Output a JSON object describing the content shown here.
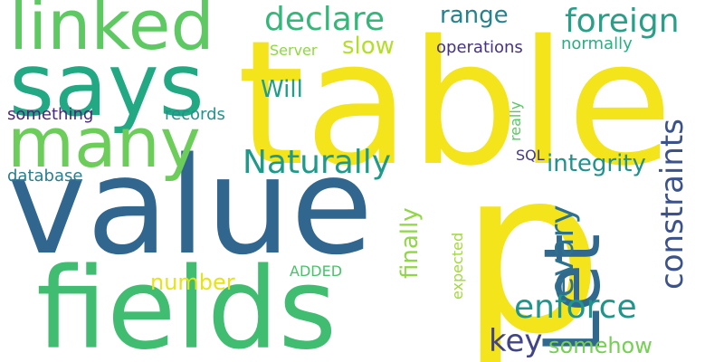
{
  "words": [
    {
      "text": "table",
      "color": "#f3e41b"
    },
    {
      "text": "p",
      "color": "#f3e41b"
    },
    {
      "text": "value",
      "color": "#31668e"
    },
    {
      "text": "fields",
      "color": "#41bd72"
    },
    {
      "text": "says",
      "color": "#23a884"
    },
    {
      "text": "linked",
      "color": "#5ec962"
    },
    {
      "text": "many",
      "color": "#6ccd5a"
    },
    {
      "text": "Let",
      "color": "#31688e"
    },
    {
      "text": "declare",
      "color": "#35b779"
    },
    {
      "text": "foreign",
      "color": "#2a9f87"
    },
    {
      "text": "Naturally",
      "color": "#1f9a8a"
    },
    {
      "text": "constraints",
      "color": "#3b528b"
    },
    {
      "text": "enforce",
      "color": "#1f958b"
    },
    {
      "text": "evary",
      "color": "#2d718e"
    },
    {
      "text": "integrity",
      "color": "#21918c"
    },
    {
      "text": "range",
      "color": "#26828e"
    },
    {
      "text": "slow",
      "color": "#b5de2b"
    },
    {
      "text": "Will",
      "color": "#1f9e89"
    },
    {
      "text": "finally",
      "color": "#8fd744"
    },
    {
      "text": "key",
      "color": "#414487"
    },
    {
      "text": "somehow",
      "color": "#75d054"
    },
    {
      "text": "number",
      "color": "#e5e419"
    },
    {
      "text": "operations",
      "color": "#46337e"
    },
    {
      "text": "normally",
      "color": "#29af7f"
    },
    {
      "text": "Server",
      "color": "#90d743"
    },
    {
      "text": "something",
      "color": "#482878"
    },
    {
      "text": "records",
      "color": "#20938c"
    },
    {
      "text": "really",
      "color": "#5ac864"
    },
    {
      "text": "database",
      "color": "#277f8e"
    },
    {
      "text": "SQL",
      "color": "#443983"
    },
    {
      "text": "ADDED",
      "color": "#4ac16d"
    },
    {
      "text": "expected",
      "color": "#a2da37"
    }
  ]
}
